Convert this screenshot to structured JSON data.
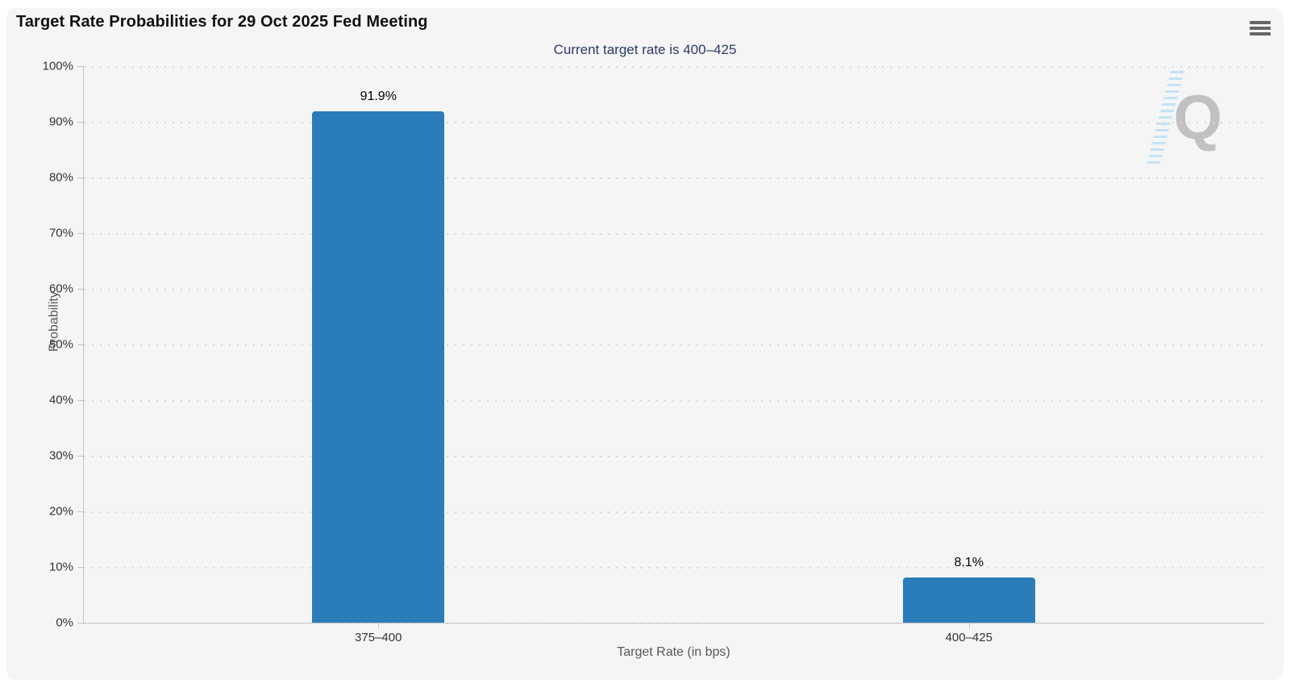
{
  "chart_data": {
    "type": "bar",
    "title": "Target Rate Probabilities for 29 Oct 2025 Fed Meeting",
    "subtitle": "Current target rate is 400–425",
    "categories": [
      "375–400",
      "400–425"
    ],
    "values": [
      91.9,
      8.1
    ],
    "value_labels": [
      "91.9%",
      "8.1%"
    ],
    "xlabel": "Target Rate (in bps)",
    "ylabel": "Probability",
    "ylim": [
      0,
      100
    ],
    "ytick_labels": [
      "0%",
      "10%",
      "20%",
      "30%",
      "40%",
      "50%",
      "60%",
      "70%",
      "80%",
      "90%",
      "100%"
    ],
    "grid": "dotted horizontal",
    "legend_position": "none",
    "bar_color": "#2a7db8",
    "subtitle_color": "#2b3a64",
    "title_color": "#121212"
  },
  "icons": {
    "context_menu": "hamburger-menu",
    "watermark_letter": "Q"
  }
}
